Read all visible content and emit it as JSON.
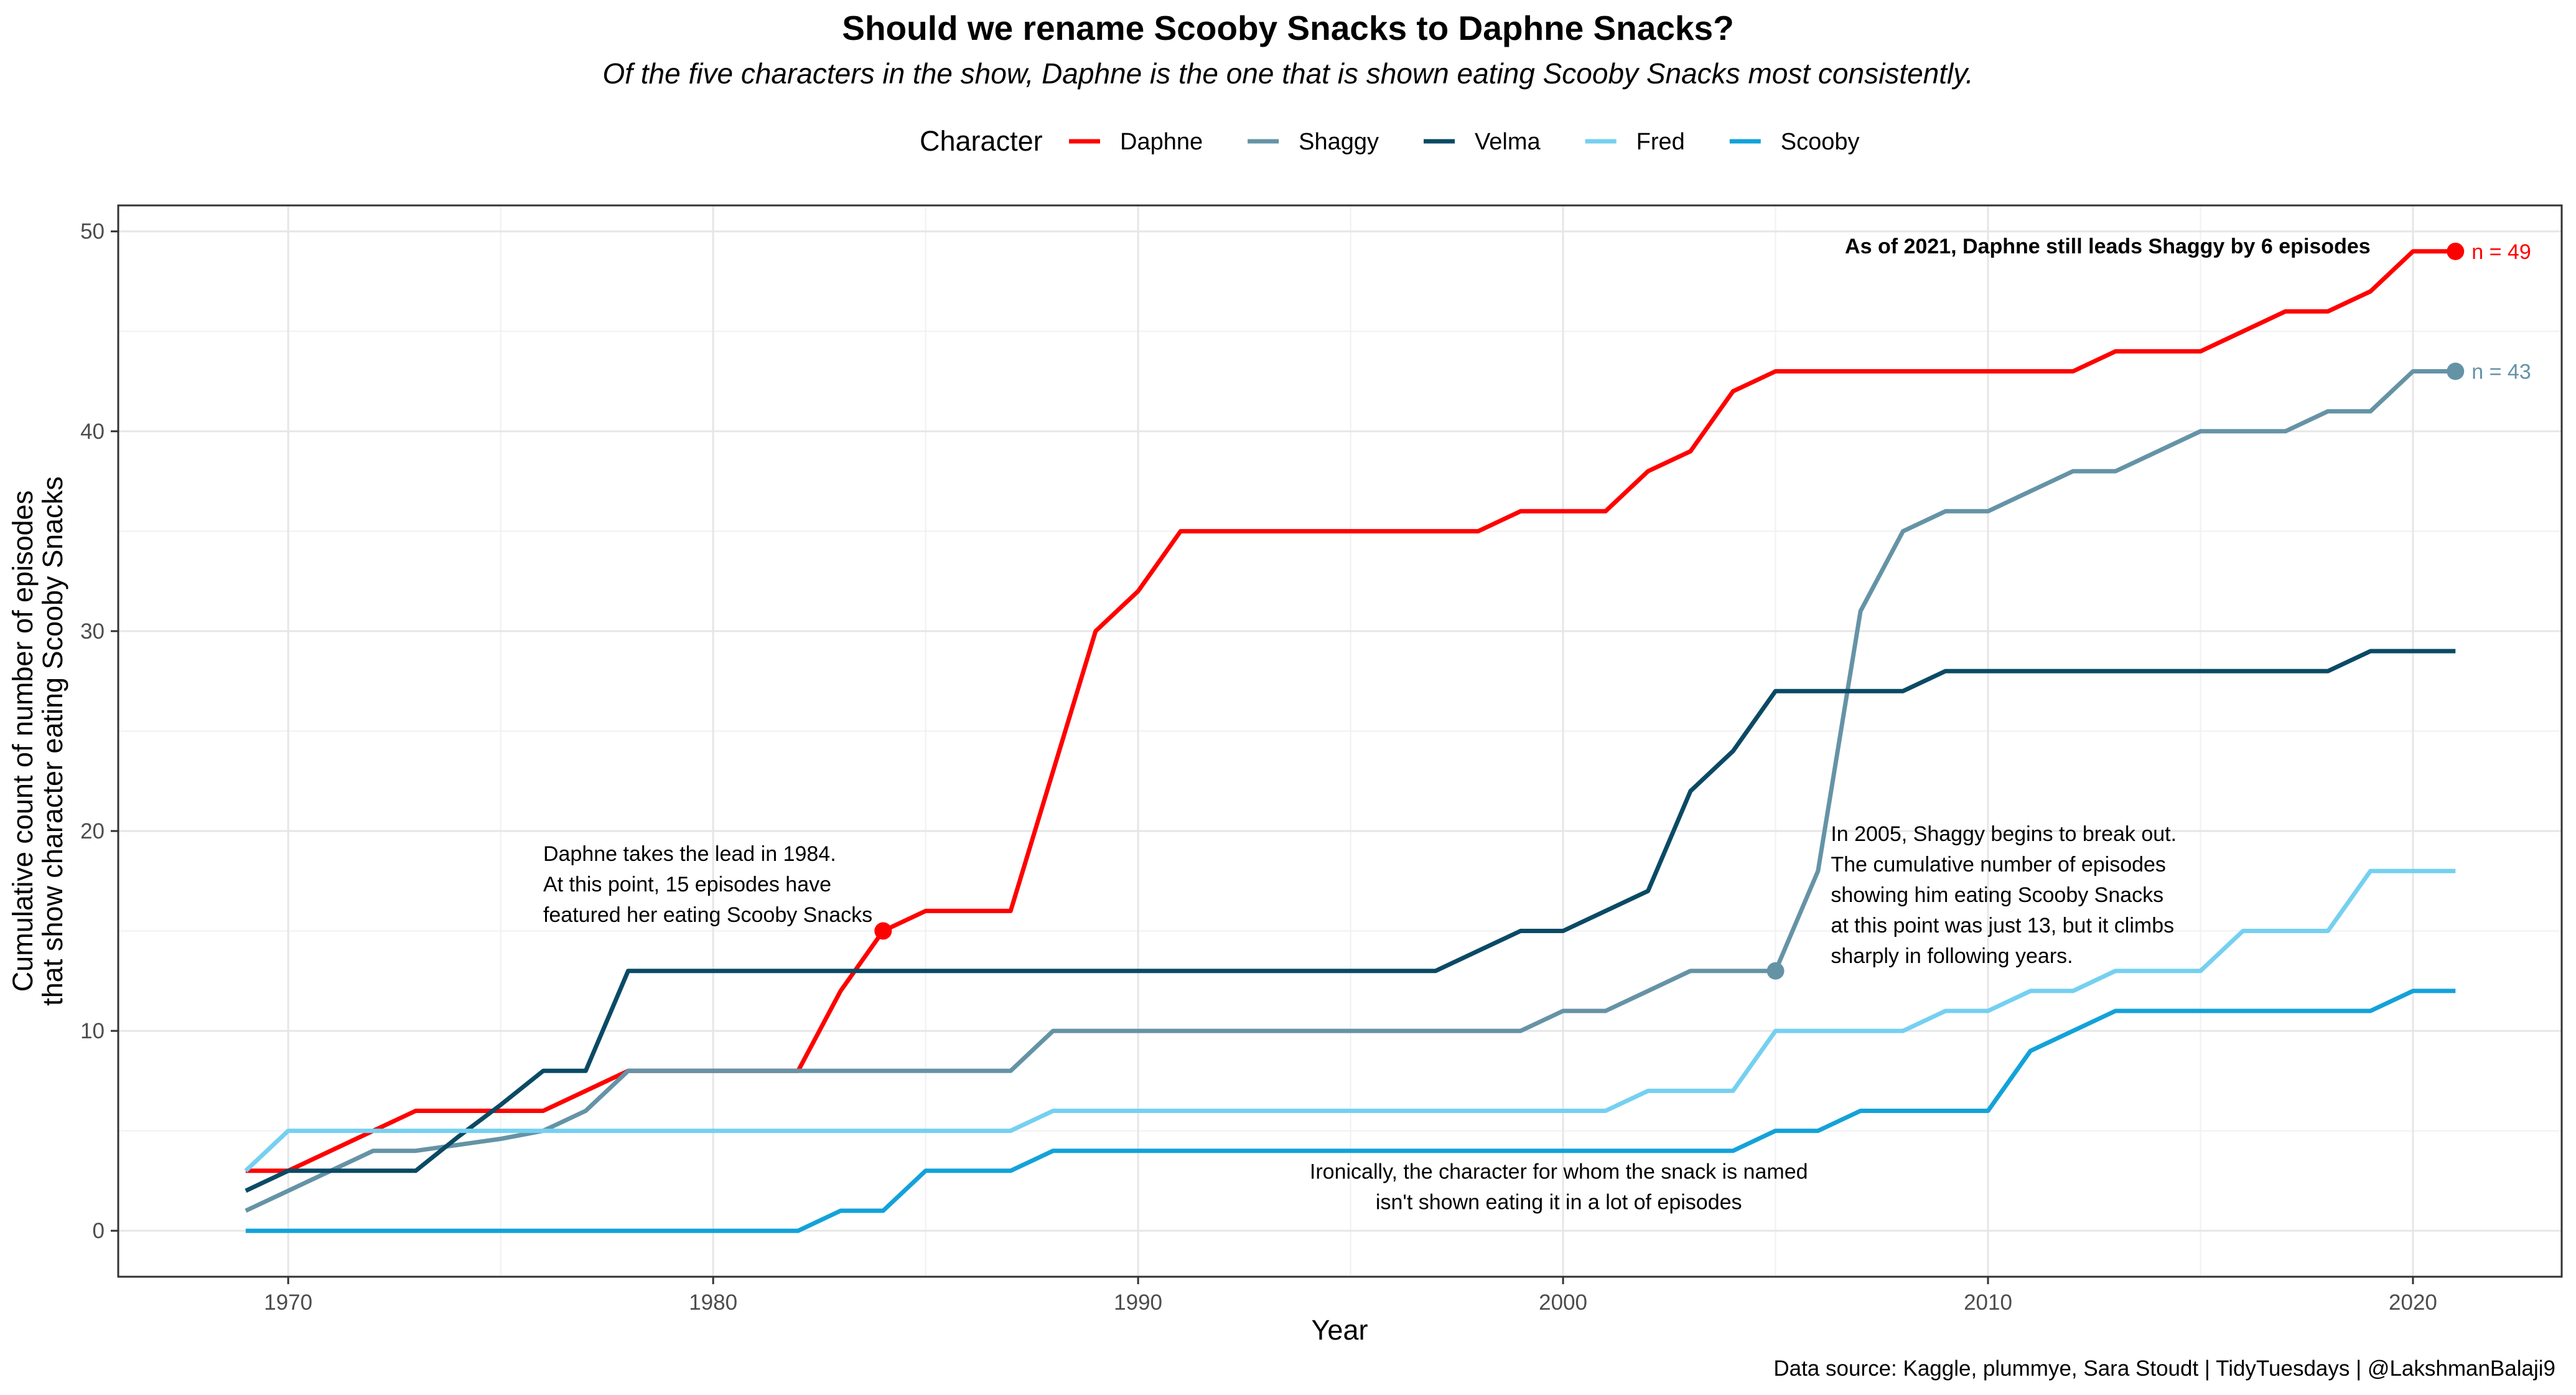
{
  "chart_data": {
    "type": "line",
    "title": "Should we rename Scooby Snacks to Daphne Snacks?",
    "subtitle": "Of the five characters in the show, Daphne is the one that is shown eating Scooby Snacks most consistently.",
    "legend": {
      "title": "Character",
      "position": "top"
    },
    "xlabel": "Year",
    "ylabel_lines": [
      "Cumulative count of number of episodes",
      "that show character eating Scooby Snacks"
    ],
    "xlim": [
      1966,
      2023.5
    ],
    "ylim": [
      -2.3,
      51.3
    ],
    "x_ticks": [
      1970,
      1980,
      1990,
      2000,
      2010,
      2020
    ],
    "y_ticks": [
      0,
      10,
      20,
      30,
      40,
      50
    ],
    "grid": true,
    "caption": "Data source: Kaggle, plummye, Sara Stoudt | TidyTuesdays | @LakshmanBalaji9",
    "x": [
      1969,
      1970,
      1971,
      1972,
      1973,
      1974,
      1975,
      1976,
      1977,
      1978,
      1979,
      1980,
      1981,
      1982,
      1983,
      1984,
      1985,
      1986,
      1987,
      1988,
      1989,
      1990,
      1991,
      1992,
      1993,
      1994,
      1995,
      1996,
      1997,
      1998,
      1999,
      2000,
      2001,
      2002,
      2003,
      2004,
      2005,
      2006,
      2007,
      2008,
      2009,
      2010,
      2011,
      2012,
      2013,
      2014,
      2015,
      2016,
      2017,
      2018,
      2019,
      2020,
      2021
    ],
    "series": [
      {
        "name": "Daphne",
        "color": "#ff0000",
        "values": [
          3,
          3,
          4,
          5,
          6,
          6,
          6,
          6,
          7,
          8,
          8,
          8,
          8,
          8,
          12,
          15,
          16,
          16,
          16,
          23,
          30,
          32,
          35,
          35,
          35,
          35,
          35,
          35,
          35,
          35,
          36,
          36,
          36,
          38,
          39,
          42,
          43,
          43,
          43,
          43,
          43,
          43,
          43,
          43,
          44,
          44,
          44,
          45,
          46,
          46,
          47,
          49,
          49
        ]
      },
      {
        "name": "Shaggy",
        "color": "#6593a6",
        "values": [
          1,
          2,
          3,
          4,
          4,
          4.3,
          4.6,
          5,
          6,
          8,
          8,
          8,
          8,
          8,
          8,
          8,
          8,
          8,
          8,
          10,
          10,
          10,
          10,
          10,
          10,
          10,
          10,
          10,
          10,
          10,
          10,
          11,
          11,
          12,
          13,
          13,
          13,
          18,
          31,
          35,
          36,
          36,
          37,
          38,
          38,
          39,
          40,
          40,
          40,
          41,
          41,
          43,
          43
        ]
      },
      {
        "name": "Velma",
        "color": "#0a4a65",
        "values": [
          2,
          3,
          3,
          3,
          3,
          4.7,
          6.3,
          8,
          8,
          13,
          13,
          13,
          13,
          13,
          13,
          13,
          13,
          13,
          13,
          13,
          13,
          13,
          13,
          13,
          13,
          13,
          13,
          13,
          13,
          14,
          15,
          15,
          16,
          17,
          22,
          24,
          27,
          27,
          27,
          27,
          28,
          28,
          28,
          28,
          28,
          28,
          28,
          28,
          28,
          28,
          29,
          29,
          29
        ]
      },
      {
        "name": "Fred",
        "color": "#75d0f0",
        "values": [
          3,
          5,
          5,
          5,
          5,
          5,
          5,
          5,
          5,
          5,
          5,
          5,
          5,
          5,
          5,
          5,
          5,
          5,
          5,
          6,
          6,
          6,
          6,
          6,
          6,
          6,
          6,
          6,
          6,
          6,
          6,
          6,
          6,
          7,
          7,
          7,
          10,
          10,
          10,
          10,
          11,
          11,
          12,
          12,
          13,
          13,
          13,
          15,
          15,
          15,
          18,
          18,
          18
        ]
      },
      {
        "name": "Scooby",
        "color": "#13a2d9",
        "values": [
          0,
          0,
          0,
          0,
          0,
          0,
          0,
          0,
          0,
          0,
          0,
          0,
          0,
          0,
          1,
          1,
          3,
          3,
          3,
          4,
          4,
          4,
          4,
          4,
          4,
          4,
          4,
          4,
          4,
          4,
          4,
          4,
          4,
          4,
          4,
          4,
          5,
          5,
          6,
          6,
          6,
          6,
          9,
          10,
          11,
          11,
          11,
          11,
          11,
          11,
          11,
          12,
          12
        ]
      }
    ],
    "highlight_points": [
      {
        "series": "Daphne",
        "x": 1984,
        "y": 15
      },
      {
        "series": "Shaggy",
        "x": 2005,
        "y": 13
      },
      {
        "series": "Daphne",
        "x": 2021,
        "y": 49
      },
      {
        "series": "Shaggy",
        "x": 2021,
        "y": 43
      }
    ],
    "end_labels": [
      {
        "series": "Daphne",
        "text": "n = 49",
        "x": 2021,
        "y": 49
      },
      {
        "series": "Shaggy",
        "text": "n = 43",
        "x": 2021,
        "y": 43
      }
    ],
    "annotations": [
      {
        "id": "lead-note",
        "bold": true,
        "anchor": "end",
        "x": 2019,
        "y": 48.9,
        "lines": [
          "As of 2021, Daphne still leads Shaggy by 6 episodes"
        ]
      },
      {
        "id": "daphne-1984-note",
        "bold": false,
        "anchor": "start",
        "x": 1976,
        "y": 18.5,
        "lines": [
          "Daphne takes the lead in 1984.",
          "At this point, 15 episodes have",
          "featured her eating Scooby Snacks"
        ]
      },
      {
        "id": "shaggy-2005-note",
        "bold": false,
        "anchor": "start",
        "x": 2006.3,
        "y": 19.5,
        "lines": [
          "In 2005, Shaggy begins to break out.",
          "The cumulative number of episodes",
          "showing him eating Scooby Snacks",
          "at this point was just 13, but it climbs",
          "sharply in following years."
        ]
      },
      {
        "id": "scooby-note",
        "bold": false,
        "anchor": "middle",
        "x": 1999.9,
        "y": 2.6,
        "lines": [
          "Ironically, the character for whom the snack is named",
          "isn't shown eating it in a lot of episodes"
        ]
      }
    ]
  }
}
